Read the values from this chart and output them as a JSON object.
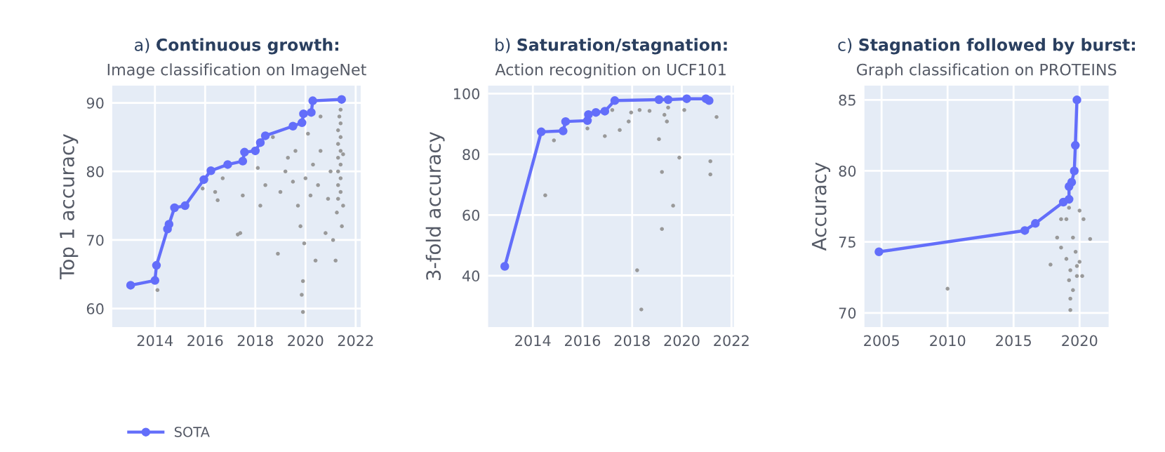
{
  "chart_data": [
    {
      "type": "line",
      "title": "a) Continuous growth:",
      "subtitle": "Image classification on ImageNet",
      "ylabel": "Top 1 accuracy",
      "xlim": [
        2012.3,
        2022.2
      ],
      "ylim": [
        57.3,
        92.5
      ],
      "xticks": [
        2014,
        2016,
        2018,
        2020,
        2022
      ],
      "yticks": [
        60,
        70,
        80,
        90
      ],
      "grid": true,
      "legend": "bottom",
      "marker": "circle",
      "series": [
        {
          "type": "scatter",
          "color": "#999999",
          "x": [
            2014.1,
            2015.9,
            2016.4,
            2016.5,
            2016.7,
            2017.3,
            2017.4,
            2017.5,
            2018.1,
            2018.2,
            2018.4,
            2018.7,
            2018.9,
            2019.0,
            2019.2,
            2019.3,
            2019.5,
            2019.6,
            2019.7,
            2019.8,
            2019.85,
            2019.9,
            2019.9,
            2019.95,
            2020.0,
            2020.1,
            2020.2,
            2020.3,
            2020.4,
            2020.5,
            2020.6,
            2020.8,
            2020.9,
            2021.0,
            2021.1,
            2021.2,
            2021.25,
            2021.3,
            2021.3,
            2021.3,
            2021.3,
            2021.3,
            2021.3,
            2021.35,
            2021.4,
            2021.4,
            2021.4,
            2021.4,
            2021.4,
            2021.4,
            2021.4,
            2021.45,
            2021.5,
            2021.5,
            2020.6
          ],
          "values": [
            62.7,
            77.5,
            77.0,
            75.8,
            79.0,
            70.8,
            71.0,
            76.5,
            80.5,
            75.0,
            78.0,
            85.0,
            68.0,
            77.0,
            80.0,
            82.0,
            78.5,
            83.0,
            75.0,
            72.0,
            62.0,
            59.5,
            64.0,
            69.5,
            79.0,
            85.5,
            76.5,
            81.0,
            67.0,
            78.0,
            83.0,
            71.0,
            76.0,
            80.0,
            70.0,
            67.0,
            74.0,
            76.0,
            78.0,
            80.0,
            82.0,
            84.0,
            86.0,
            88.0,
            77.0,
            79.0,
            81.0,
            83.0,
            85.0,
            87.0,
            89.0,
            72.0,
            75.0,
            82.5,
            88.0
          ]
        },
        {
          "name": "SOTA",
          "color": "#636efa",
          "x": [
            2013.03,
            2014.0,
            2014.06,
            2014.5,
            2014.56,
            2014.78,
            2015.2,
            2015.95,
            2016.23,
            2016.9,
            2017.5,
            2017.57,
            2018.0,
            2018.2,
            2018.4,
            2019.5,
            2019.86,
            2019.92,
            2020.23,
            2020.29,
            2021.44
          ],
          "values": [
            63.4,
            64.1,
            66.3,
            71.6,
            72.3,
            74.7,
            75.0,
            78.8,
            80.1,
            81.0,
            81.5,
            82.8,
            83.0,
            84.2,
            85.2,
            86.6,
            87.1,
            88.4,
            88.6,
            90.3,
            90.5
          ]
        }
      ]
    },
    {
      "type": "line",
      "title": "b) Saturation/stagnation:",
      "subtitle": "Action recognition on UCF101",
      "ylabel": "3-fold accuracy",
      "xlim": [
        2012.2,
        2022.1
      ],
      "ylim": [
        23.1,
        102.6
      ],
      "xticks": [
        2014,
        2016,
        2018,
        2020,
        2022
      ],
      "yticks": [
        40,
        60,
        80,
        100
      ],
      "grid": true,
      "marker": "circle",
      "series": [
        {
          "type": "scatter",
          "color": "#999999",
          "x": [
            2014.5,
            2014.85,
            2016.2,
            2016.9,
            2017.5,
            2017.86,
            2018.2,
            2018.37,
            2019.08,
            2019.2,
            2019.2,
            2019.65,
            2019.9,
            2019.4,
            2019.3,
            2019.45,
            2020.1,
            2021.15,
            2021.15,
            2021.4,
            2018.3,
            2018.7,
            2017.2,
            2017.96
          ],
          "values": [
            66.5,
            84.6,
            88.5,
            86.0,
            88.0,
            90.8,
            41.8,
            28.9,
            85.0,
            74.2,
            55.4,
            63.1,
            78.9,
            90.8,
            93.0,
            95.4,
            94.6,
            77.7,
            73.4,
            92.3,
            94.6,
            94.3,
            94.6,
            93.8
          ]
        },
        {
          "color": "#636efa",
          "x": [
            2012.87,
            2014.34,
            2015.22,
            2015.32,
            2016.2,
            2016.24,
            2016.54,
            2016.9,
            2017.3,
            2019.08,
            2019.45,
            2020.2,
            2020.97,
            2021.1
          ],
          "values": [
            43.1,
            87.4,
            87.7,
            90.8,
            91.1,
            93.1,
            93.8,
            94.2,
            97.7,
            98.0,
            98.0,
            98.3,
            98.3,
            97.7
          ]
        }
      ]
    },
    {
      "type": "line",
      "title": "c) Stagnation followed by burst:",
      "subtitle": "Graph classification on PROTEINS",
      "ylabel": "Accuracy",
      "xlim": [
        2003.7,
        2022.2
      ],
      "ylim": [
        69.0,
        86.0
      ],
      "xticks": [
        2005,
        2010,
        2015,
        2020
      ],
      "yticks": [
        70,
        75,
        80,
        85
      ],
      "grid": true,
      "marker": "circle",
      "series": [
        {
          "type": "scatter",
          "color": "#999999",
          "x": [
            2010.0,
            2017.8,
            2018.3,
            2018.6,
            2019.0,
            2019.2,
            2019.3,
            2019.3,
            2019.5,
            2019.7,
            2019.8,
            2020.0,
            2020.3,
            2020.8,
            2019.2,
            2019.0,
            2019.3,
            2019.5,
            2020.0,
            2019.8,
            2020.2,
            2018.6
          ],
          "values": [
            71.7,
            73.4,
            75.3,
            76.6,
            73.8,
            72.3,
            71.0,
            70.2,
            75.3,
            74.3,
            73.3,
            77.2,
            76.6,
            75.2,
            77.4,
            76.6,
            73.0,
            71.6,
            73.6,
            72.6,
            72.6,
            74.6
          ]
        },
        {
          "color": "#636efa",
          "x": [
            2004.8,
            2015.85,
            2016.65,
            2018.77,
            2019.2,
            2019.2,
            2019.4,
            2019.6,
            2019.68,
            2019.8
          ],
          "values": [
            74.3,
            75.8,
            76.3,
            77.8,
            78.0,
            78.9,
            79.2,
            80.0,
            81.8,
            85.0
          ]
        }
      ]
    }
  ]
}
